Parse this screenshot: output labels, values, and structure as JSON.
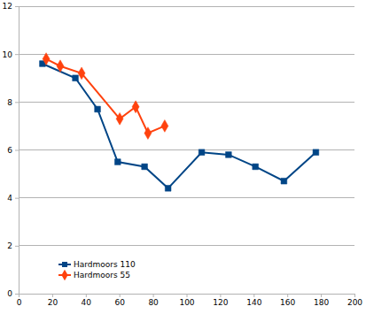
{
  "chart_data": {
    "type": "line",
    "series": [
      {
        "name": "Hardmoors 110",
        "color": "#004586",
        "marker": "square",
        "x": [
          14.2,
          33.8,
          47,
          59,
          75,
          89,
          109,
          125,
          141,
          158,
          177
        ],
        "values": [
          9.6,
          9.0,
          7.7,
          5.5,
          5.3,
          4.4,
          5.9,
          5.8,
          5.3,
          4.7,
          5.9
        ]
      },
      {
        "name": "Hardmoors 55",
        "color": "#ff420e",
        "marker": "diamond",
        "x": [
          16.4,
          24.8,
          37.5,
          60.2,
          69.7,
          77,
          87
        ],
        "values": [
          9.8,
          9.5,
          9.2,
          7.3,
          7.8,
          6.7,
          7.0
        ]
      }
    ],
    "xlim": [
      0,
      200
    ],
    "xticks": [
      0,
      20,
      40,
      60,
      80,
      100,
      120,
      140,
      160,
      180,
      200
    ],
    "ylim": [
      0,
      12
    ],
    "yticks": [
      0,
      2,
      4,
      6,
      8,
      10,
      12
    ],
    "grid": true,
    "legend": "bottom-left"
  }
}
